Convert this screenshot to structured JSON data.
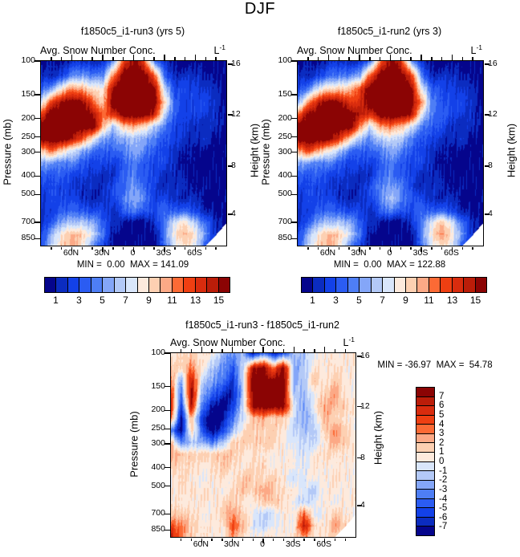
{
  "title": "DJF",
  "palette": [
    "#05058c",
    "#0b2cc0",
    "#1341e8",
    "#2b5cf2",
    "#4e7ef5",
    "#84a6f8",
    "#b3c9f7",
    "#d9e6fb",
    "#fdeadd",
    "#fdd0b2",
    "#fca986",
    "#fc6a35",
    "#ef3f12",
    "#d92c0e",
    "#bb1d09",
    "#8b0404"
  ],
  "axes": {
    "pressure_label": "Pressure (mb)",
    "height_label": "Height (km)",
    "pressure_tick_labels": [
      "100",
      "150",
      "200",
      "250",
      "300",
      "400",
      "500",
      "700",
      "850"
    ],
    "pressure_tick_values": [
      100,
      150,
      200,
      250,
      300,
      400,
      500,
      700,
      850
    ],
    "height_tick_labels": [
      "16",
      "12",
      "8",
      "4"
    ],
    "lat_tick_labels": [
      "60N",
      "30N",
      "0",
      "30S",
      "60S"
    ]
  },
  "panels": [
    {
      "title": "f1850c5_i1-run3 (yrs 5)",
      "subtitle": "Avg. Snow Number Conc.",
      "units_base": "L",
      "units_exp": "-1",
      "minmax": "MIN =  0.00  MAX = 141.09"
    },
    {
      "title": "f1850c5_i1-run2 (yrs 3)",
      "subtitle": "Avg. Snow Number Conc.",
      "units_base": "L",
      "units_exp": "-1",
      "minmax": "MIN =  0.00  MAX = 122.88"
    },
    {
      "title": "f1850c5_i1-run3 - f1850c5_i1-run2",
      "subtitle": "Avg. Snow Number Conc.",
      "units_base": "L",
      "units_exp": "-1",
      "minmax": "MIN = -36.97  MAX =  54.78"
    }
  ],
  "colorbar_labels": [
    "1",
    "3",
    "5",
    "7",
    "9",
    "11",
    "13",
    "15"
  ],
  "diff_colorbar_labels": [
    "7",
    "6",
    "5",
    "4",
    "3",
    "2",
    "1",
    "0",
    "-1",
    "-2",
    "-3",
    "-4",
    "-5",
    "-6",
    "-7"
  ],
  "chart_data": [
    {
      "type": "heatmap",
      "title": "f1850c5_i1-run3 (yrs 5)",
      "variable": "Avg. Snow Number Conc.",
      "units": "L^-1",
      "min": 0.0,
      "max": 141.09,
      "contour_levels": [
        1,
        2,
        3,
        4,
        5,
        6,
        7,
        8,
        9,
        10,
        11,
        12,
        13,
        14,
        15
      ],
      "x_lats_deg_north": [
        90,
        80,
        70,
        60,
        50,
        40,
        30,
        20,
        10,
        0,
        -10,
        -20,
        -30,
        -40,
        -50,
        -60,
        -70,
        -80,
        -90
      ],
      "y_pressures_mb": [
        100,
        120,
        140,
        165,
        190,
        220,
        255,
        295,
        340,
        395,
        455,
        525,
        610,
        700,
        810,
        925
      ],
      "pressure_axis_range_mb": [
        100,
        925
      ],
      "pressure_axis_scale": "log",
      "height_tick_fractions": [
        0.017,
        0.291,
        0.57,
        0.83
      ],
      "values": [
        [
          1,
          1,
          1,
          2,
          2,
          2,
          2,
          5,
          13,
          16,
          13,
          5,
          2,
          1,
          1,
          1,
          1,
          1,
          1
        ],
        [
          2,
          2,
          3,
          5,
          6,
          5,
          5,
          12,
          17,
          17,
          17,
          13,
          4,
          2,
          2,
          2,
          2,
          1,
          1
        ],
        [
          4,
          6,
          9,
          12,
          11,
          9,
          9,
          16,
          17,
          17,
          17,
          16,
          8,
          3,
          3,
          3,
          2,
          2,
          1
        ],
        [
          8,
          13,
          16,
          17,
          16,
          13,
          10,
          17,
          17,
          17,
          17,
          17,
          10,
          4,
          3,
          3,
          3,
          2,
          1
        ],
        [
          13,
          17,
          17,
          17,
          17,
          16,
          12,
          14,
          17,
          17,
          17,
          15,
          7,
          4,
          3,
          3,
          3,
          2,
          1
        ],
        [
          17,
          17,
          17,
          17,
          17,
          17,
          11,
          7,
          10,
          11,
          10,
          7,
          5,
          3,
          2,
          2,
          2,
          2,
          1
        ],
        [
          17,
          17,
          17,
          16,
          13,
          9,
          6,
          5,
          6,
          7,
          6,
          5,
          4,
          3,
          2,
          2,
          2,
          1,
          1
        ],
        [
          10,
          12,
          10,
          8,
          6,
          5,
          4,
          4,
          5,
          6,
          5,
          4,
          3,
          2,
          2,
          1,
          1,
          1,
          1
        ],
        [
          6,
          6,
          5,
          5,
          4,
          3,
          3,
          3,
          4,
          5,
          4,
          3,
          3,
          2,
          1,
          1,
          1,
          1,
          1
        ],
        [
          4,
          4,
          4,
          3,
          3,
          2,
          2,
          2,
          4,
          5,
          4,
          3,
          2,
          2,
          1,
          1,
          1,
          1,
          1
        ],
        [
          3,
          3,
          3,
          3,
          2,
          2,
          2,
          3,
          4,
          6,
          4,
          3,
          2,
          2,
          2,
          1,
          1,
          1,
          1
        ],
        [
          2,
          3,
          3,
          3,
          2,
          2,
          2,
          3,
          5,
          6,
          5,
          3,
          3,
          2,
          2,
          2,
          1,
          1,
          1
        ],
        [
          2,
          3,
          4,
          4,
          4,
          3,
          3,
          2,
          4,
          5,
          4,
          3,
          4,
          4,
          4,
          3,
          2,
          1,
          1
        ],
        [
          2,
          4,
          6,
          7,
          7,
          6,
          4,
          2,
          1,
          1,
          1,
          2,
          5,
          8,
          9,
          7,
          4,
          2,
          1
        ],
        [
          3,
          6,
          9,
          11,
          10,
          8,
          5,
          1,
          1,
          1,
          1,
          1,
          5,
          9,
          11,
          9,
          5,
          2,
          1
        ],
        [
          3,
          7,
          10,
          11,
          9,
          6,
          3,
          1,
          1,
          1,
          1,
          1,
          4,
          8,
          10,
          8,
          4,
          2,
          1
        ]
      ]
    },
    {
      "type": "heatmap",
      "title": "f1850c5_i1-run2 (yrs 3)",
      "variable": "Avg. Snow Number Conc.",
      "units": "L^-1",
      "min": 0.0,
      "max": 122.88,
      "contour_levels": [
        1,
        2,
        3,
        4,
        5,
        6,
        7,
        8,
        9,
        10,
        11,
        12,
        13,
        14,
        15
      ],
      "x_lats_deg_north": [
        90,
        80,
        70,
        60,
        50,
        40,
        30,
        20,
        10,
        0,
        -10,
        -20,
        -30,
        -40,
        -50,
        -60,
        -70,
        -80,
        -90
      ],
      "y_pressures_mb": [
        100,
        120,
        140,
        165,
        190,
        220,
        255,
        295,
        340,
        395,
        455,
        525,
        610,
        700,
        810,
        925
      ],
      "pressure_axis_range_mb": [
        100,
        925
      ],
      "pressure_axis_scale": "log",
      "height_tick_fractions": [
        0.017,
        0.291,
        0.57,
        0.83
      ],
      "values": [
        [
          1,
          1,
          1,
          2,
          2,
          2,
          2,
          4,
          12,
          16,
          14,
          6,
          2,
          1,
          1,
          1,
          1,
          1,
          1
        ],
        [
          2,
          2,
          3,
          4,
          5,
          5,
          6,
          13,
          17,
          17,
          17,
          14,
          5,
          2,
          2,
          2,
          2,
          1,
          1
        ],
        [
          3,
          5,
          8,
          10,
          10,
          10,
          13,
          17,
          17,
          17,
          17,
          16,
          9,
          4,
          3,
          3,
          2,
          2,
          1
        ],
        [
          6,
          11,
          15,
          17,
          16,
          14,
          14,
          17,
          17,
          17,
          17,
          17,
          12,
          5,
          4,
          3,
          3,
          2,
          1
        ],
        [
          12,
          16,
          17,
          17,
          17,
          17,
          15,
          14,
          17,
          17,
          17,
          16,
          8,
          5,
          4,
          3,
          3,
          2,
          1
        ],
        [
          17,
          17,
          17,
          17,
          17,
          17,
          12,
          8,
          11,
          12,
          11,
          8,
          5,
          4,
          3,
          2,
          2,
          2,
          1
        ],
        [
          17,
          17,
          17,
          17,
          14,
          10,
          7,
          5,
          7,
          8,
          7,
          5,
          4,
          3,
          2,
          2,
          2,
          1,
          1
        ],
        [
          11,
          13,
          11,
          9,
          7,
          5,
          4,
          4,
          5,
          6,
          5,
          4,
          3,
          2,
          2,
          1,
          1,
          1,
          1
        ],
        [
          6,
          6,
          5,
          5,
          4,
          3,
          3,
          3,
          4,
          5,
          4,
          3,
          3,
          2,
          1,
          1,
          1,
          1,
          1
        ],
        [
          4,
          4,
          4,
          3,
          3,
          2,
          2,
          2,
          4,
          5,
          4,
          3,
          2,
          2,
          1,
          1,
          1,
          1,
          1
        ],
        [
          3,
          3,
          3,
          3,
          2,
          2,
          2,
          3,
          5,
          6,
          5,
          3,
          2,
          2,
          2,
          1,
          1,
          1,
          1
        ],
        [
          2,
          3,
          3,
          3,
          2,
          2,
          2,
          3,
          5,
          7,
          5,
          4,
          3,
          2,
          2,
          2,
          1,
          1,
          1
        ],
        [
          2,
          3,
          4,
          4,
          4,
          3,
          3,
          2,
          4,
          5,
          4,
          3,
          4,
          4,
          4,
          3,
          2,
          1,
          1
        ],
        [
          2,
          4,
          6,
          7,
          7,
          6,
          4,
          2,
          1,
          1,
          1,
          2,
          5,
          8,
          10,
          8,
          4,
          2,
          1
        ],
        [
          3,
          6,
          9,
          11,
          10,
          8,
          5,
          1,
          1,
          1,
          1,
          1,
          5,
          9,
          12,
          9,
          5,
          2,
          1
        ],
        [
          3,
          7,
          10,
          11,
          9,
          6,
          3,
          1,
          1,
          1,
          1,
          1,
          4,
          8,
          10,
          8,
          4,
          2,
          1
        ]
      ]
    },
    {
      "type": "heatmap",
      "title": "f1850c5_i1-run3 - f1850c5_i1-run2",
      "variable": "Avg. Snow Number Conc.",
      "units": "L^-1",
      "min": -36.97,
      "max": 54.78,
      "contour_levels": [
        -7,
        -6,
        -5,
        -4,
        -3,
        -2,
        -1,
        0,
        1,
        2,
        3,
        4,
        5,
        6,
        7
      ],
      "x_lats_deg_north": [
        90,
        80,
        70,
        60,
        50,
        40,
        30,
        20,
        10,
        0,
        -10,
        -20,
        -30,
        -40,
        -50,
        -60,
        -70,
        -80,
        -90
      ],
      "y_pressures_mb": [
        100,
        120,
        140,
        165,
        190,
        220,
        255,
        295,
        340,
        395,
        455,
        525,
        610,
        700,
        810,
        925
      ],
      "pressure_axis_range_mb": [
        100,
        925
      ],
      "pressure_axis_scale": "log",
      "height_tick_fractions": [
        0.017,
        0.291,
        0.57,
        0.83
      ],
      "values": [
        [
          0.5,
          0.5,
          1.5,
          0.5,
          0.5,
          -1.5,
          -3,
          -2,
          -7,
          -4,
          -7,
          -5,
          -2,
          -1.5,
          0.5,
          0.5,
          0.5,
          0.5,
          0.5
        ],
        [
          1.5,
          1.5,
          3.5,
          0.5,
          -1.5,
          -3,
          -5,
          -1,
          7,
          8,
          4,
          8,
          -3,
          -1.5,
          0.5,
          0.5,
          1.5,
          0.5,
          0.5
        ],
        [
          3.5,
          -2.5,
          6.5,
          -0.5,
          -2.5,
          -4,
          -6,
          -1,
          8,
          8,
          8,
          8,
          -2,
          -1.5,
          1.5,
          0.5,
          1.5,
          0.5,
          0.5
        ],
        [
          5.5,
          -5,
          8,
          -2,
          -4.5,
          -6,
          -7,
          -2,
          8,
          8,
          8,
          8,
          -1.5,
          -2,
          0.5,
          1.5,
          2.5,
          0.5,
          0.5
        ],
        [
          6,
          -6,
          7,
          -4,
          -7,
          -8,
          -6,
          -1,
          8,
          8,
          8,
          8,
          -1,
          -2.5,
          0.5,
          2.5,
          2.5,
          1.5,
          0.5
        ],
        [
          4,
          -7,
          2.5,
          -6,
          -8,
          -8,
          -4,
          -0.5,
          1.5,
          2.5,
          1.5,
          1.5,
          -1,
          -2.5,
          -1.5,
          2.5,
          1.5,
          0.5,
          0.5
        ],
        [
          -3,
          -8,
          1.5,
          -4,
          -8,
          -6,
          -2,
          0.5,
          1.5,
          1.5,
          1.5,
          0.5,
          -0.5,
          -2,
          -1.5,
          1.5,
          2.5,
          1.5,
          0.5
        ],
        [
          2.5,
          -4,
          -1.5,
          -2,
          -4,
          -1.5,
          1.5,
          1.5,
          1.5,
          1.5,
          1,
          0.5,
          -0.5,
          -1,
          -0.5,
          0.5,
          2.5,
          1.5,
          0.5
        ],
        [
          2.5,
          2,
          1.5,
          1,
          1.5,
          2,
          1.5,
          1,
          1,
          0.5,
          0.5,
          0.5,
          -0.5,
          -0.5,
          0.5,
          1,
          1.5,
          0.5,
          0.5
        ],
        [
          1.5,
          1.5,
          1,
          0.5,
          1,
          1.5,
          1,
          0.5,
          1,
          1.5,
          0.5,
          0.5,
          0.5,
          -0.5,
          0.5,
          0.5,
          0.5,
          0.5,
          0.5
        ],
        [
          0.5,
          1,
          0.5,
          0.5,
          0.5,
          1,
          0.5,
          1.5,
          1.5,
          1,
          1.5,
          0.5,
          -0.5,
          -0.5,
          0.5,
          0.5,
          0.5,
          0.5,
          0.5
        ],
        [
          0.5,
          0.5,
          1,
          0.5,
          0.5,
          0.5,
          1,
          2,
          1.5,
          2.5,
          1.5,
          1,
          0.5,
          -0.5,
          -1,
          0.5,
          0.5,
          0.5,
          0.5
        ],
        [
          0.5,
          1,
          0.5,
          0.5,
          0.5,
          1,
          1.5,
          1,
          0.5,
          1.5,
          2,
          1,
          -0.5,
          -1,
          -0.5,
          0.5,
          0.5,
          0.5,
          0.5
        ],
        [
          1.5,
          2,
          1,
          0.5,
          0.5,
          1,
          3,
          1.5,
          -0.5,
          -1,
          -0.5,
          0.5,
          0.5,
          4,
          -1,
          0.5,
          1.5,
          0.5,
          0.5
        ],
        [
          4.5,
          3,
          1.5,
          1,
          0.5,
          0.5,
          4.5,
          2,
          -0.5,
          -1,
          -0.5,
          0.5,
          0.5,
          6.5,
          1.5,
          0.5,
          2.5,
          1.5,
          0.5
        ],
        [
          6.5,
          3,
          1.5,
          0.5,
          0.5,
          0.5,
          3,
          1,
          0.5,
          0.5,
          0.5,
          0.5,
          0.5,
          3,
          1,
          0.5,
          1.5,
          0.5,
          0.5
        ]
      ]
    }
  ]
}
